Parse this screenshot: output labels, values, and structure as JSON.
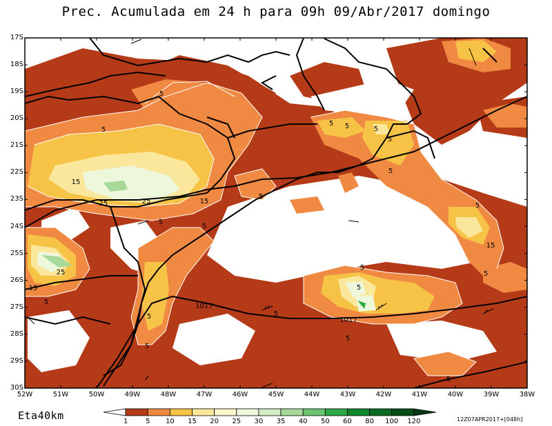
{
  "title": "Prec. Acumulada em 24 h para 09h 09/Abr/2017 domingo",
  "model_label": "Eta40km",
  "run_stamp": "12Z07APR2017+[048h]",
  "latitude_labels": [
    "17S",
    "18S",
    "19S",
    "20S",
    "21S",
    "22S",
    "23S",
    "24S",
    "25S",
    "26S",
    "27S",
    "28S",
    "29S",
    "30S"
  ],
  "longitude_labels": [
    "52W",
    "51W",
    "50W",
    "49W",
    "48W",
    "47W",
    "46W",
    "45W",
    "44W",
    "43W",
    "42W",
    "41W",
    "40W",
    "39W",
    "38W"
  ],
  "colorbar": {
    "levels": [
      "1",
      "5",
      "10",
      "15",
      "20",
      "25",
      "30",
      "35",
      "40",
      "50",
      "60",
      "80",
      "100",
      "120"
    ],
    "colors": [
      "#ffffff",
      "#b53a17",
      "#f08a43",
      "#f6c347",
      "#fbe79b",
      "#fcf6cd",
      "#edf7dc",
      "#d4ecc4",
      "#a6d99a",
      "#6cc470",
      "#30a847",
      "#10872f",
      "#0a6a22",
      "#074e16",
      "#043610"
    ]
  },
  "contour_labels": {
    "precip": [
      "5",
      "5",
      "5",
      "15",
      "25",
      "25",
      "15",
      "5",
      "5",
      "5",
      "25",
      "15",
      "5",
      "5",
      "5",
      "5",
      "5",
      "5",
      "5",
      "5",
      "15",
      "5",
      "5",
      "5",
      "5",
      "5",
      "5"
    ],
    "isobar": [
      "1017",
      "1017"
    ]
  }
}
